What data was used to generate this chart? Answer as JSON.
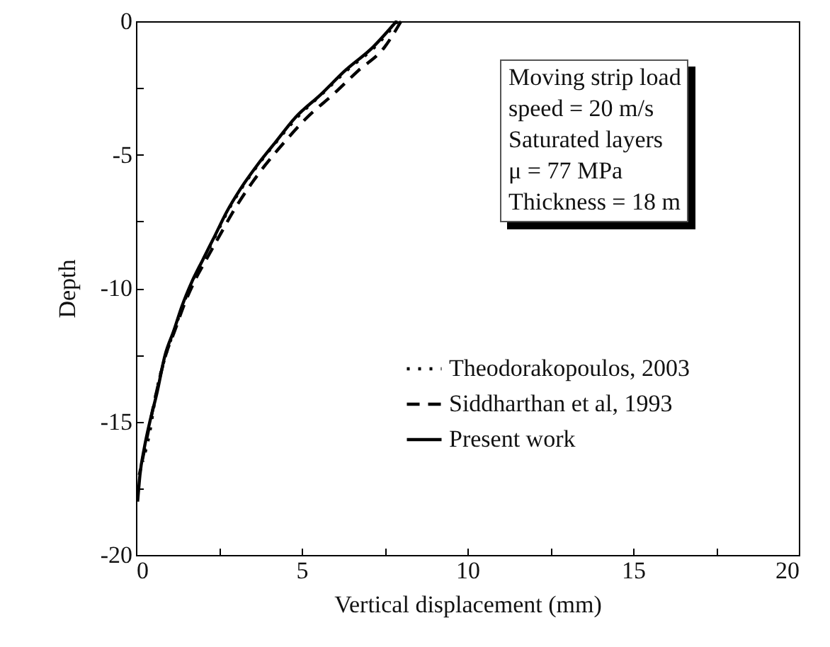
{
  "chart_data": {
    "type": "line",
    "xlabel": "Vertical displacement (mm)",
    "ylabel": "Depth",
    "xlim": [
      0,
      20
    ],
    "ylim": [
      -20,
      0
    ],
    "xticks": [
      0,
      {
        "value": 2.5,
        "label": null
      },
      5,
      {
        "value": 7.5,
        "label": null
      },
      10,
      {
        "value": 12.5,
        "label": null
      },
      15,
      {
        "value": 17.5,
        "label": null
      },
      20
    ],
    "yticks": [
      -20,
      {
        "value": -17.5,
        "label": null
      },
      -15,
      {
        "value": -12.5,
        "label": null
      },
      -10,
      {
        "value": -7.5,
        "label": null
      },
      -5,
      {
        "value": -2.5,
        "label": null
      },
      0
    ],
    "grid": false,
    "legend": "right",
    "marker": "none",
    "annotations": [
      "Moving strip load",
      "speed = 20 m/s",
      "Saturated layers",
      "μ = 77 MPa",
      "Thickness = 18 m"
    ],
    "series": [
      {
        "name": "Theodorakopoulos, 2003",
        "color": "#000000",
        "line_style": "dotted",
        "x": [
          7.9,
          7.2,
          6.35,
          5.6,
          4.85,
          4.25,
          3.68,
          3.18,
          2.75,
          2.4,
          2.03,
          1.68,
          1.4,
          1.15,
          0.9,
          0.6,
          0.4,
          0.2
        ],
        "values": [
          0,
          -0.97,
          -1.86,
          -2.74,
          -3.62,
          -4.5,
          -5.39,
          -6.27,
          -7.16,
          -8.04,
          -8.93,
          -9.81,
          -10.7,
          -11.6,
          -12.5,
          -14,
          -15.5,
          -16.5
        ]
      },
      {
        "name": "Siddharthan et al, 1993",
        "color": "#000000",
        "line_style": "dashed",
        "x": [
          8.0,
          7.5,
          6.7,
          5.95,
          5.15,
          4.5,
          3.9,
          3.38,
          2.92,
          2.52,
          2.12,
          1.74,
          1.43,
          1.17,
          0.9,
          0.6,
          0.35,
          0.1
        ],
        "values": [
          0,
          -0.97,
          -1.86,
          -2.74,
          -3.62,
          -4.5,
          -5.39,
          -6.27,
          -7.16,
          -8.04,
          -8.93,
          -9.81,
          -10.7,
          -11.6,
          -12.5,
          -14,
          -15.5,
          -17
        ]
      },
      {
        "name": "Present work",
        "color": "#000000",
        "line_style": "solid",
        "x": [
          7.86,
          7.15,
          6.3,
          5.58,
          4.8,
          4.23,
          3.66,
          3.16,
          2.73,
          2.38,
          2.02,
          1.67,
          1.38,
          1.14,
          0.88,
          0.62,
          0.42,
          0.25,
          0.12,
          0.05
        ],
        "values": [
          0,
          -0.97,
          -1.86,
          -2.74,
          -3.62,
          -4.5,
          -5.39,
          -6.27,
          -7.16,
          -8.04,
          -8.93,
          -9.81,
          -10.7,
          -11.6,
          -12.5,
          -14,
          -15,
          -16,
          -17,
          -18
        ]
      }
    ]
  }
}
